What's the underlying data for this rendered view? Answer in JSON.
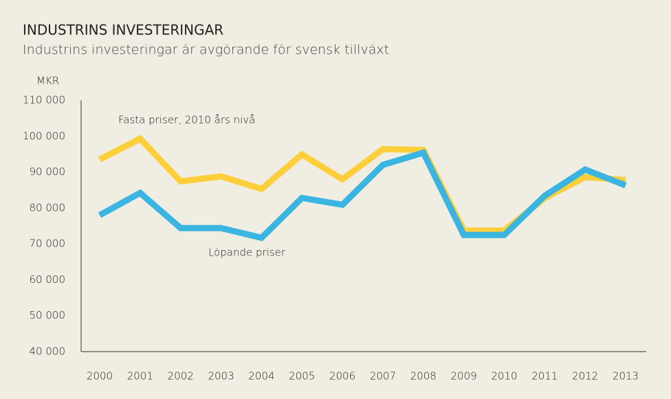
{
  "chart_data": {
    "type": "line",
    "title": "INDUSTRINS INVESTERINGAR",
    "subtitle": "Industrins investeringar är avgörande för svensk tillväxt",
    "y_label": "MKR",
    "categories": [
      "2000",
      "2001",
      "2002",
      "2003",
      "2004",
      "2005",
      "2006",
      "2007",
      "2008",
      "2009",
      "2010",
      "2011",
      "2012",
      "2013"
    ],
    "series": [
      {
        "name": "Fasta priser, 2010 års nivå",
        "color": "#fccf3b",
        "values": [
          93500,
          99300,
          87400,
          88800,
          85300,
          94900,
          88000,
          96400,
          96200,
          73700,
          73700,
          82800,
          88600,
          87800
        ]
      },
      {
        "name": "Löpande priser",
        "color": "#3ab4e0",
        "values": [
          78000,
          84200,
          74400,
          74400,
          71700,
          82800,
          80900,
          92000,
          95400,
          72500,
          72500,
          83400,
          90700,
          86300
        ]
      }
    ],
    "ylim": [
      40000,
      110000
    ],
    "yticks": [
      {
        "value": 40000,
        "label": "40 000"
      },
      {
        "value": 50000,
        "label": "50 000"
      },
      {
        "value": 60000,
        "label": "60 000"
      },
      {
        "value": 70000,
        "label": "70 000"
      },
      {
        "value": 80000,
        "label": "80 000"
      },
      {
        "value": 90000,
        "label": "90 000"
      },
      {
        "value": 100000,
        "label": "100 000"
      },
      {
        "value": 110000,
        "label": "110 000"
      }
    ]
  }
}
